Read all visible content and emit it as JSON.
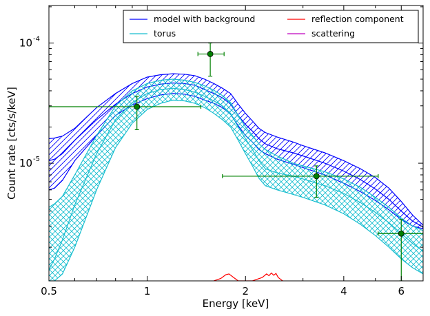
{
  "chart_data": {
    "type": "line",
    "title": "",
    "xlabel": "Energy [keV]",
    "ylabel": "Count rate [cts/s/keV]",
    "xscale": "log",
    "yscale": "log",
    "xlim": [
      0.5,
      7.0
    ],
    "ylim": [
      1.05e-06,
      0.000205
    ],
    "grid": false,
    "legend": {
      "placement": "top-right",
      "columns": 2
    },
    "x_ticks": [
      {
        "value": 0.5,
        "label": "0.5"
      },
      {
        "value": 1,
        "label": "1"
      },
      {
        "value": 2,
        "label": "2"
      },
      {
        "value": 4,
        "label": "4"
      },
      {
        "value": 6,
        "label": "6"
      }
    ],
    "y_ticks": [
      {
        "value": 1e-05,
        "label": "10",
        "exp": "-5"
      },
      {
        "value": 0.0001,
        "label": "10",
        "exp": "-4"
      }
    ],
    "series": [
      {
        "name": "model with background",
        "color": "#0000ff",
        "hatch": "diagonal",
        "x": [
          0.5,
          0.52,
          0.55,
          0.6,
          0.7,
          0.8,
          0.9,
          1.0,
          1.1,
          1.2,
          1.3,
          1.4,
          1.5,
          1.6,
          1.7,
          1.8,
          1.9,
          2.0,
          2.1,
          2.2,
          2.3,
          2.5,
          2.8,
          3.0,
          3.5,
          4.0,
          4.5,
          5.0,
          5.5,
          6.0,
          6.5,
          7.0
        ],
        "y": [
          1.05e-05,
          1.08e-05,
          1.2e-05,
          1.55e-05,
          2.3e-05,
          3.1e-05,
          3.8e-05,
          4.3e-05,
          4.55e-05,
          4.65e-05,
          4.6e-05,
          4.45e-05,
          4.1e-05,
          3.8e-05,
          3.5e-05,
          3.1e-05,
          2.5e-05,
          2.1e-05,
          1.85e-05,
          1.6e-05,
          1.45e-05,
          1.32e-05,
          1.22e-05,
          1.15e-05,
          1e-05,
          8.6e-06,
          7.3e-06,
          6.1e-06,
          5e-06,
          4e-06,
          3.3e-06,
          2.95e-06
        ],
        "upper": [
          1.6e-05,
          1.62e-05,
          1.68e-05,
          1.95e-05,
          2.9e-05,
          3.8e-05,
          4.6e-05,
          5.2e-05,
          5.45e-05,
          5.55e-05,
          5.5e-05,
          5.35e-05,
          5e-05,
          4.6e-05,
          4.2e-05,
          3.8e-05,
          3.1e-05,
          2.6e-05,
          2.25e-05,
          1.95e-05,
          1.8e-05,
          1.65e-05,
          1.5e-05,
          1.4e-05,
          1.22e-05,
          1.05e-05,
          9e-06,
          7.6e-06,
          6.2e-06,
          4.8e-06,
          3.7e-06,
          3.05e-06
        ],
        "lower": [
          6e-06,
          6.2e-06,
          7.2e-06,
          1.05e-05,
          1.7e-05,
          2.5e-05,
          3.05e-05,
          3.45e-05,
          3.7e-05,
          3.8e-05,
          3.75e-05,
          3.6e-05,
          3.35e-05,
          3.15e-05,
          2.9e-05,
          2.55e-05,
          2.05e-05,
          1.7e-05,
          1.5e-05,
          1.3e-05,
          1.2e-05,
          1.08e-05,
          9.8e-06,
          9.2e-06,
          8e-06,
          6.8e-06,
          5.8e-06,
          4.9e-06,
          4.1e-06,
          3.4e-06,
          3e-06,
          2.85e-06
        ]
      },
      {
        "name": "torus",
        "color": "#17becf",
        "hatch": "cross",
        "x": [
          0.5,
          0.52,
          0.55,
          0.6,
          0.7,
          0.8,
          0.9,
          1.0,
          1.1,
          1.2,
          1.3,
          1.4,
          1.5,
          1.6,
          1.7,
          1.8,
          1.9,
          2.0,
          2.1,
          2.2,
          2.3,
          2.5,
          2.8,
          3.0,
          3.5,
          4.0,
          4.5,
          5.0,
          5.5,
          6.0,
          6.5,
          7.0
        ],
        "y": [
          1.3e-06,
          1.6e-06,
          2.3e-06,
          4.5e-06,
          1.2e-05,
          2.3e-05,
          3.2e-05,
          3.8e-05,
          4.1e-05,
          4.2e-05,
          4.1e-05,
          3.9e-05,
          3.6e-05,
          3.3e-05,
          3e-05,
          2.6e-05,
          2e-05,
          1.6e-05,
          1.3e-05,
          1.05e-05,
          9e-06,
          8.3e-06,
          7.8e-06,
          7.4e-06,
          6.5e-06,
          5.6e-06,
          4.7e-06,
          3.9e-06,
          3.2e-06,
          2.6e-06,
          2.15e-06,
          1.85e-06
        ],
        "upper": [
          4.3e-06,
          4.6e-06,
          5.3e-06,
          8e-06,
          1.7e-05,
          3e-05,
          4e-05,
          4.6e-05,
          4.9e-05,
          5e-05,
          4.9e-05,
          4.7e-05,
          4.4e-05,
          4.05e-05,
          3.65e-05,
          3.2e-05,
          2.5e-05,
          2e-05,
          1.7e-05,
          1.45e-05,
          1.3e-05,
          1.15e-05,
          1e-05,
          9.5e-06,
          8.5e-06,
          7.4e-06,
          6.3e-06,
          5.2e-06,
          4.3e-06,
          3.5e-06,
          3e-06,
          2.75e-06
        ],
        "lower": [
          1.05e-06,
          1.05e-06,
          1.2e-06,
          2e-06,
          6e-06,
          1.35e-05,
          2.15e-05,
          2.8e-05,
          3.15e-05,
          3.35e-05,
          3.3e-05,
          3.15e-05,
          2.9e-05,
          2.6e-05,
          2.3e-05,
          2e-05,
          1.55e-05,
          1.2e-05,
          9.5e-06,
          7.5e-06,
          6.5e-06,
          6e-06,
          5.5e-06,
          5.2e-06,
          4.5e-06,
          3.8e-06,
          3.1e-06,
          2.5e-06,
          2e-06,
          1.6e-06,
          1.35e-06,
          1.2e-06
        ]
      },
      {
        "name": "reflection component",
        "color": "#ff0000",
        "x": [
          1.6,
          1.68,
          1.74,
          1.78,
          1.84,
          1.9,
          2.1,
          2.25,
          2.32,
          2.36,
          2.4,
          2.44,
          2.48,
          2.52,
          2.6
        ],
        "y": [
          1.05e-06,
          1.1e-06,
          1.18e-06,
          1.2e-06,
          1.12e-06,
          1.05e-06,
          1.05e-06,
          1.12e-06,
          1.2e-06,
          1.16e-06,
          1.22e-06,
          1.17e-06,
          1.21e-06,
          1.12e-06,
          1.05e-06
        ]
      },
      {
        "name": "scattering",
        "color": "#bf00bf",
        "x": [],
        "y": []
      }
    ],
    "data_points": {
      "color": "#008000",
      "points": [
        {
          "x": 0.93,
          "y": 2.95e-05,
          "xlo": 0.5,
          "xhi": 1.46,
          "ylo": 1.9e-05,
          "yhi": 3.6e-05
        },
        {
          "x": 1.56,
          "y": 8.1e-05,
          "xlo": 1.43,
          "xhi": 1.72,
          "ylo": 5.3e-05,
          "yhi": 0.0001
        },
        {
          "x": 3.3,
          "y": 7.8e-06,
          "xlo": 1.7,
          "xhi": 5.1,
          "ylo": 5.2e-06,
          "yhi": 9.5e-06
        },
        {
          "x": 6.0,
          "y": 2.6e-06,
          "xlo": 5.1,
          "xhi": 7.0,
          "ylo": 1.05e-06,
          "yhi": 3.4e-06
        }
      ]
    }
  }
}
